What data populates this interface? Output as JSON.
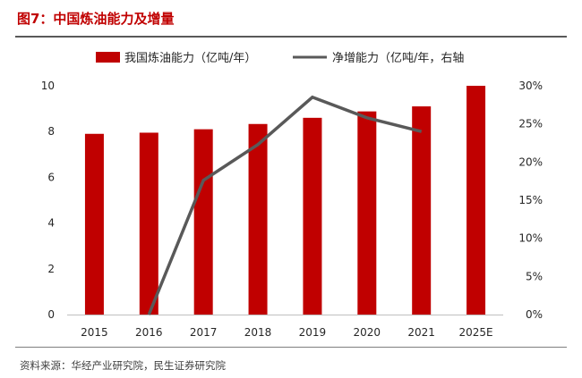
{
  "figure": {
    "title": "图7：中国炼油能力及增量",
    "source": "资料来源：华经产业研究院，民生证券研究院"
  },
  "chart_data": {
    "type": "bar",
    "categories": [
      "2015",
      "2016",
      "2017",
      "2018",
      "2019",
      "2020",
      "2021",
      "2025E"
    ],
    "series": [
      {
        "name": "我国炼油能力（亿吨/年）",
        "type": "bar",
        "axis": "left",
        "color": "#c00000",
        "values": [
          7.9,
          7.95,
          8.1,
          8.33,
          8.6,
          8.88,
          9.1,
          10.0
        ]
      },
      {
        "name": "净增能力（亿吨/年，右轴",
        "type": "line",
        "axis": "right",
        "color": "#595959",
        "values": [
          null,
          0.0,
          17.6,
          22.3,
          28.5,
          25.8,
          24.0,
          null
        ]
      }
    ],
    "y_left": {
      "ylim": [
        0,
        10
      ],
      "ticks": [
        "0",
        "2",
        "4",
        "6",
        "8",
        "10"
      ]
    },
    "y_right": {
      "ylim": [
        0,
        30
      ],
      "ticks": [
        "0%",
        "5%",
        "10%",
        "15%",
        "20%",
        "25%",
        "30%"
      ]
    },
    "grid": false,
    "legend_position": "top"
  }
}
